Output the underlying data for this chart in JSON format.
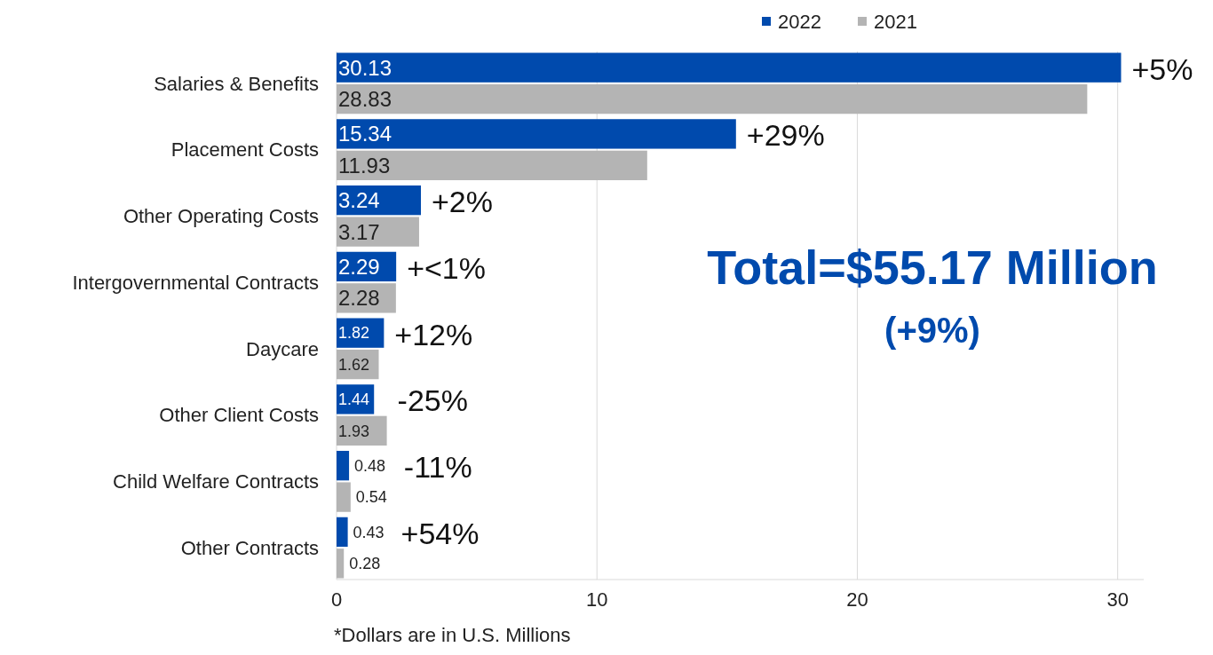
{
  "chart_data": {
    "type": "bar",
    "orientation": "horizontal",
    "categories": [
      "Salaries & Benefits",
      "Placement Costs",
      "Other Operating Costs",
      "Intergovernmental Contracts",
      "Daycare",
      "Other Client Costs",
      "Child Welfare Contracts",
      "Other Contracts"
    ],
    "series": [
      {
        "name": "2022",
        "color": "#004aad",
        "values": [
          30.13,
          15.34,
          3.24,
          2.29,
          1.82,
          1.44,
          0.48,
          0.43
        ],
        "value_labels": [
          "30.13",
          "15.34",
          "3.24",
          "2.29",
          "1.82",
          "1.44",
          "0.48",
          "0.43"
        ]
      },
      {
        "name": "2021",
        "color": "#b4b4b4",
        "values": [
          28.83,
          11.93,
          3.17,
          2.28,
          1.62,
          1.93,
          0.54,
          0.28
        ],
        "value_labels": [
          "28.83",
          "11.93",
          "3.17",
          "2.28",
          "1.62",
          "1.93",
          "0.54",
          "0.28"
        ]
      }
    ],
    "xlim": [
      0,
      31
    ],
    "xticks": [
      0,
      10,
      20,
      30
    ],
    "grid": "x",
    "legend": "top",
    "annotations": [
      {
        "text": "+5%",
        "x": 30.13,
        "y": "Salaries & Benefits"
      },
      {
        "text": "+29%",
        "x": 15.34,
        "y": "Placement Costs"
      },
      {
        "text": "+2%",
        "x": 3.24,
        "y": "Other Operating Costs"
      },
      {
        "text": "+<1%",
        "x": 2.29,
        "y": "Intergovernmental Contracts"
      },
      {
        "text": "+12%",
        "x": 1.82,
        "y": "Daycare"
      },
      {
        "text": "-25%",
        "x": 1.93,
        "y": "Other Client Costs"
      },
      {
        "text": "-11%",
        "x": 0.54,
        "y": "Child Welfare Contracts"
      },
      {
        "text": "+54%",
        "x": 0.43,
        "y": "Other Contracts"
      },
      "Total=$55.17 Million",
      "(+9%)",
      "*Dollars are in U.S. Millions"
    ]
  }
}
